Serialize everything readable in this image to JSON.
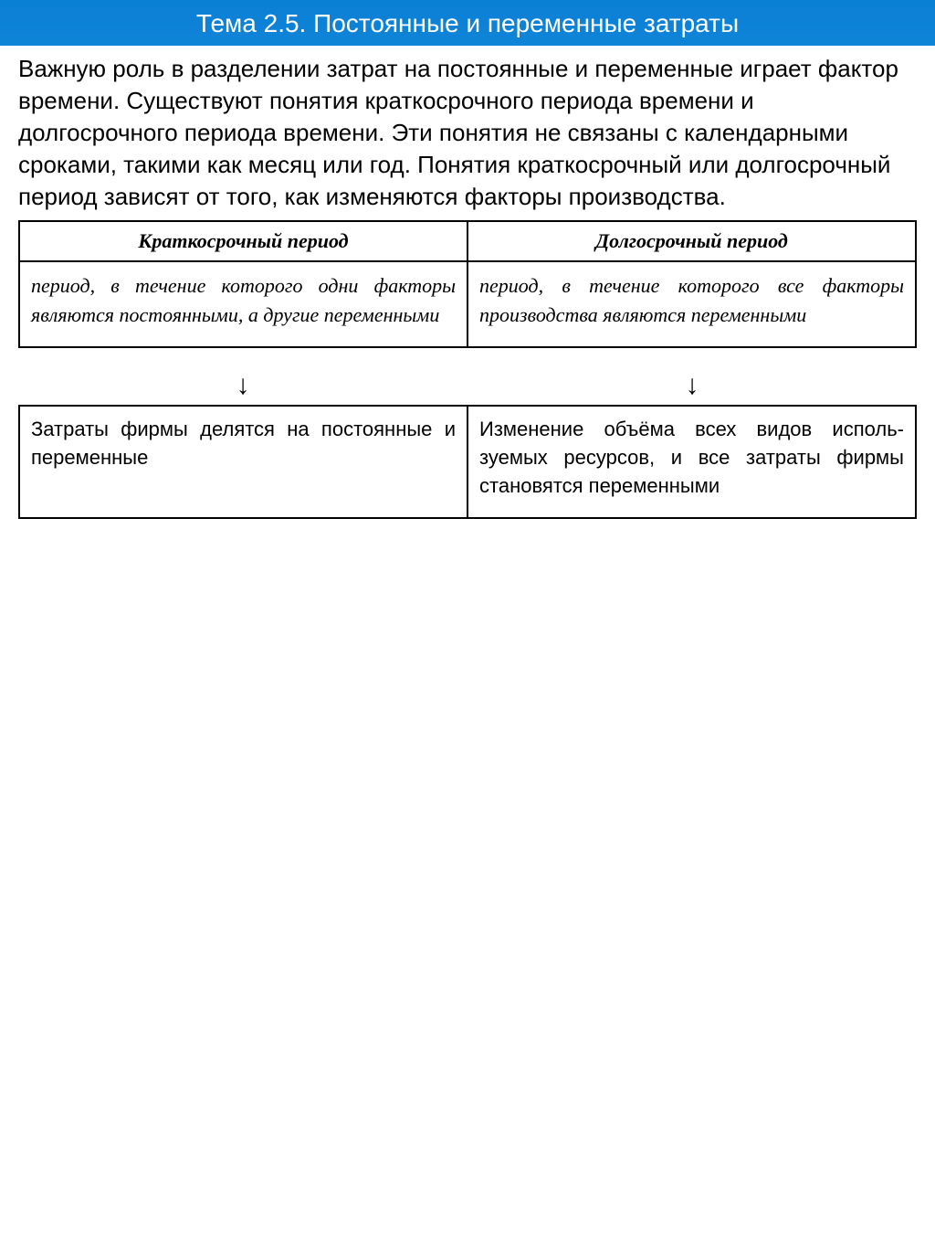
{
  "title": "Тема 2.5. Постоянные и переменные затраты",
  "body": "Важную роль в разделении затрат на постоянные и переменные играет фактор времени. Существуют понятия краткосрочного периода времени и долгосрочного периода времени. Эти понятия не связаны с календарными сроками, такими как месяц или год. Понятия краткосрочный или долгосрочный период зависят от того, как изменяются факторы производства.",
  "table": {
    "headers": [
      "Краткосрочный период",
      "Долгосрочный период"
    ],
    "cells": [
      "период, в течение которого одни факторы являются постоянными, а другие пе­ременными",
      "период, в течение которого все фак­торы производства являются пере­менными"
    ]
  },
  "arrow_glyph": "↓",
  "bottom": {
    "cells": [
      "Затраты фирмы делятся на постоянные и переменные",
      "Изменение объёма всех видов исполь­зуемых ресурсов, и все затраты фир­мы становятся переменными"
    ]
  },
  "colors": {
    "gradient_top": "#0a7fd4",
    "gradient_bottom": "#2fa8f0",
    "title_text": "#ffffff",
    "body_bg": "#ffffff",
    "body_text": "#000000",
    "border": "#000000"
  },
  "fonts": {
    "title_size": 28,
    "body_size": 26,
    "table_size": 22,
    "serif_family": "Georgia, Times New Roman, serif",
    "sans_family": "Arial, sans-serif"
  }
}
